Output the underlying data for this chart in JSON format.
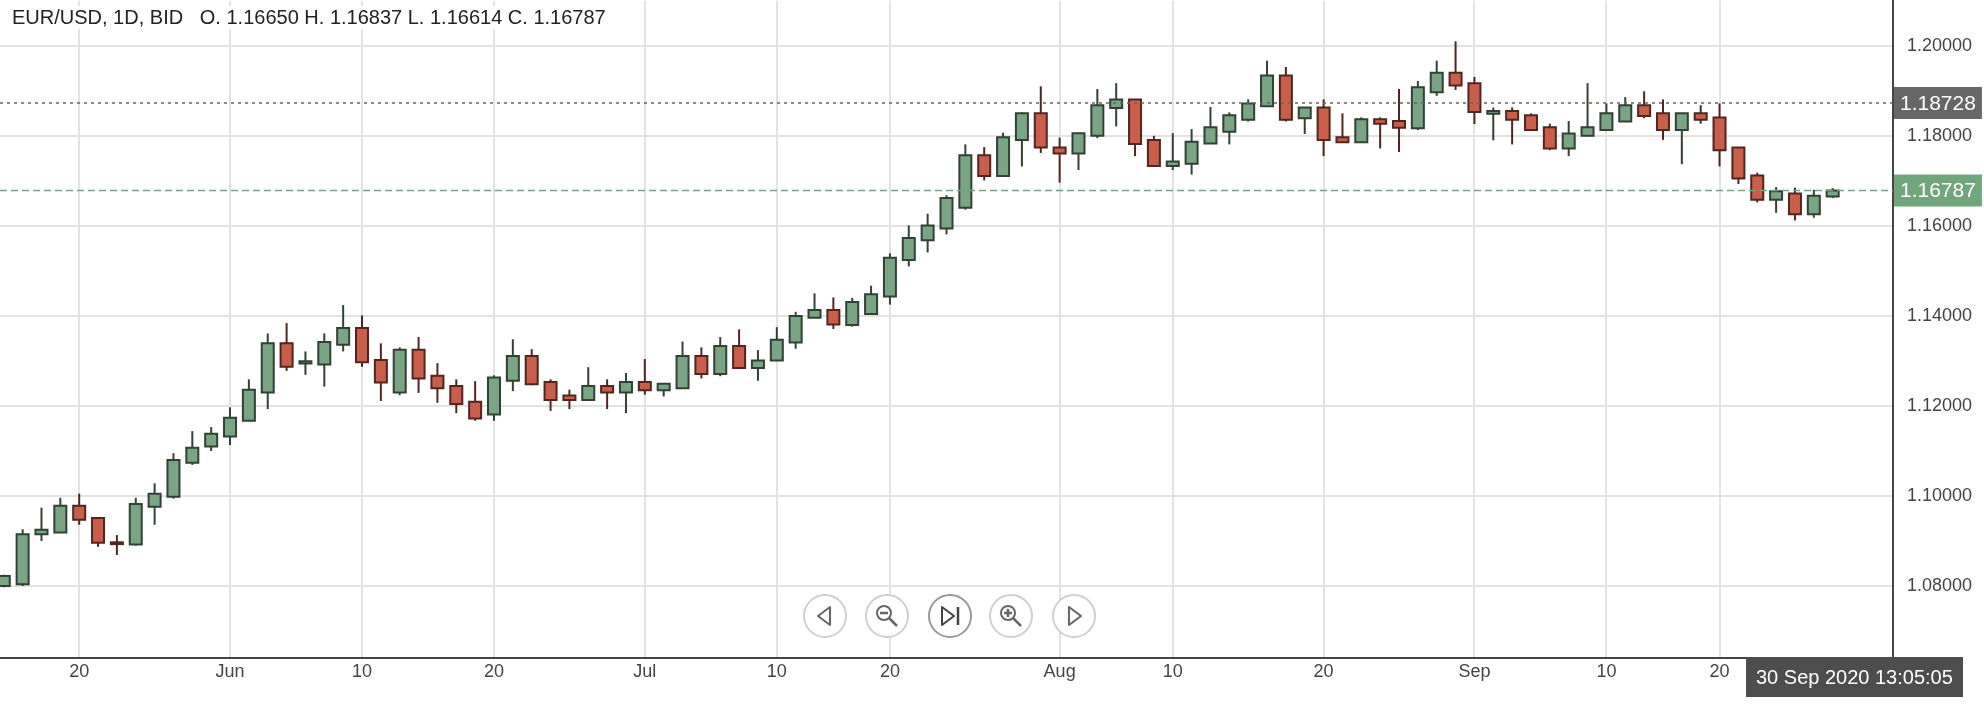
{
  "chart_data": {
    "type": "candlestick",
    "title": "EUR/USD, 1D, BID   O. 1.16650 H. 1.16837 L. 1.16614 C. 1.16787",
    "categories": [
      null,
      null,
      null,
      null,
      "20",
      null,
      null,
      null,
      null,
      null,
      null,
      null,
      "Jun",
      null,
      null,
      null,
      null,
      null,
      null,
      "10",
      null,
      null,
      null,
      null,
      null,
      null,
      "20",
      null,
      null,
      null,
      null,
      null,
      null,
      null,
      "Jul",
      null,
      null,
      null,
      null,
      null,
      null,
      "10",
      null,
      null,
      null,
      null,
      null,
      "20",
      null,
      null,
      null,
      null,
      null,
      null,
      null,
      null,
      "Aug",
      null,
      null,
      null,
      null,
      null,
      "10",
      null,
      null,
      null,
      null,
      null,
      null,
      null,
      "20",
      null,
      null,
      null,
      null,
      null,
      null,
      null,
      "Sep",
      null,
      null,
      null,
      null,
      null,
      null,
      "10",
      null,
      null,
      null,
      null,
      null,
      "20",
      null,
      null,
      null,
      null,
      null,
      null
    ],
    "ohlc": [
      [
        1.08,
        1.0825,
        1.0797,
        1.0822
      ],
      [
        1.0804,
        1.0926,
        1.08,
        1.0915
      ],
      [
        1.0915,
        1.0974,
        1.09,
        1.0925
      ],
      [
        1.0919,
        1.0996,
        1.0918,
        1.0978
      ],
      [
        1.0978,
        1.1005,
        1.0936,
        1.0947
      ],
      [
        1.0951,
        1.0953,
        1.0887,
        1.0896
      ],
      [
        1.0897,
        1.0913,
        1.0869,
        1.0893
      ],
      [
        1.0892,
        1.0996,
        1.089,
        1.0982
      ],
      [
        1.0976,
        1.1028,
        1.0936,
        1.1005
      ],
      [
        1.0998,
        1.1095,
        1.0994,
        1.108
      ],
      [
        1.1074,
        1.1144,
        1.1069,
        1.1107
      ],
      [
        1.111,
        1.1153,
        1.11,
        1.1138
      ],
      [
        1.1132,
        1.1197,
        1.1113,
        1.1174
      ],
      [
        1.1167,
        1.1259,
        1.1166,
        1.1236
      ],
      [
        1.123,
        1.1361,
        1.1193,
        1.1339
      ],
      [
        1.1339,
        1.1384,
        1.1278,
        1.1287
      ],
      [
        1.1294,
        1.1321,
        1.1269,
        1.1299
      ],
      [
        1.1292,
        1.1361,
        1.1243,
        1.1342
      ],
      [
        1.1336,
        1.1424,
        1.1321,
        1.1373
      ],
      [
        1.1373,
        1.1401,
        1.1287,
        1.1297
      ],
      [
        1.1302,
        1.1339,
        1.1211,
        1.1252
      ],
      [
        1.123,
        1.133,
        1.1224,
        1.1325
      ],
      [
        1.1325,
        1.1353,
        1.1229,
        1.1261
      ],
      [
        1.1267,
        1.1295,
        1.1207,
        1.1239
      ],
      [
        1.1244,
        1.1259,
        1.1184,
        1.1204
      ],
      [
        1.1209,
        1.1255,
        1.1167,
        1.1172
      ],
      [
        1.1181,
        1.1268,
        1.1167,
        1.1263
      ],
      [
        1.1256,
        1.1348,
        1.1233,
        1.1311
      ],
      [
        1.1311,
        1.1326,
        1.1246,
        1.1248
      ],
      [
        1.1253,
        1.1259,
        1.1189,
        1.1213
      ],
      [
        1.1223,
        1.1236,
        1.1193,
        1.1213
      ],
      [
        1.1213,
        1.1286,
        1.1212,
        1.1244
      ],
      [
        1.1244,
        1.1259,
        1.1193,
        1.123
      ],
      [
        1.123,
        1.1273,
        1.1184,
        1.1253
      ],
      [
        1.1253,
        1.1304,
        1.1225,
        1.1235
      ],
      [
        1.1235,
        1.125,
        1.1221,
        1.1249
      ],
      [
        1.1239,
        1.1343,
        1.1238,
        1.1311
      ],
      [
        1.1311,
        1.133,
        1.1261,
        1.1271
      ],
      [
        1.1271,
        1.1353,
        1.1266,
        1.1333
      ],
      [
        1.1333,
        1.137,
        1.1283,
        1.1284
      ],
      [
        1.1284,
        1.1324,
        1.1256,
        1.1301
      ],
      [
        1.1301,
        1.1375,
        1.13,
        1.1347
      ],
      [
        1.1341,
        1.1409,
        1.1327,
        1.14
      ],
      [
        1.1396,
        1.145,
        1.1395,
        1.1413
      ],
      [
        1.1413,
        1.1441,
        1.1371,
        1.1381
      ],
      [
        1.138,
        1.144,
        1.1376,
        1.1431
      ],
      [
        1.1404,
        1.1467,
        1.1403,
        1.1448
      ],
      [
        1.1443,
        1.1539,
        1.1425,
        1.1529
      ],
      [
        1.1524,
        1.1601,
        1.151,
        1.1573
      ],
      [
        1.1568,
        1.1627,
        1.1541,
        1.1601
      ],
      [
        1.1594,
        1.1668,
        1.1581,
        1.1662
      ],
      [
        1.164,
        1.1781,
        1.1636,
        1.1757
      ],
      [
        1.1757,
        1.1775,
        1.1701,
        1.1711
      ],
      [
        1.1711,
        1.1807,
        1.171,
        1.1797
      ],
      [
        1.1791,
        1.1852,
        1.1732,
        1.185
      ],
      [
        1.185,
        1.191,
        1.1762,
        1.1774
      ],
      [
        1.1774,
        1.1796,
        1.1696,
        1.1761
      ],
      [
        1.1761,
        1.1807,
        1.1724,
        1.1806
      ],
      [
        1.18,
        1.1904,
        1.1795,
        1.1868
      ],
      [
        1.1862,
        1.1917,
        1.1821,
        1.1881
      ],
      [
        1.1881,
        1.1882,
        1.1755,
        1.1782
      ],
      [
        1.1791,
        1.18,
        1.1732,
        1.1733
      ],
      [
        1.1733,
        1.1806,
        1.1724,
        1.1743
      ],
      [
        1.1738,
        1.1815,
        1.1714,
        1.1787
      ],
      [
        1.1783,
        1.1864,
        1.1782,
        1.1819
      ],
      [
        1.1809,
        1.1852,
        1.1781,
        1.1846
      ],
      [
        1.1836,
        1.1881,
        1.1832,
        1.1872
      ],
      [
        1.1866,
        1.1967,
        1.1865,
        1.1934
      ],
      [
        1.1934,
        1.1953,
        1.1832,
        1.1836
      ],
      [
        1.1839,
        1.1864,
        1.1804,
        1.1863
      ],
      [
        1.1863,
        1.1881,
        1.1755,
        1.1791
      ],
      [
        1.1797,
        1.185,
        1.1785,
        1.1786
      ],
      [
        1.1786,
        1.1841,
        1.1785,
        1.1837
      ],
      [
        1.1837,
        1.1841,
        1.1772,
        1.1827
      ],
      [
        1.1833,
        1.1904,
        1.1764,
        1.1818
      ],
      [
        1.1817,
        1.1922,
        1.1813,
        1.1908
      ],
      [
        1.1897,
        1.1967,
        1.1889,
        1.194
      ],
      [
        1.194,
        1.201,
        1.1902,
        1.1912
      ],
      [
        1.1917,
        1.1931,
        1.1826,
        1.1853
      ],
      [
        1.1849,
        1.1863,
        1.179,
        1.1855
      ],
      [
        1.1855,
        1.1863,
        1.1781,
        1.1836
      ],
      [
        1.1846,
        1.185,
        1.1812,
        1.1813
      ],
      [
        1.1819,
        1.1827,
        1.1768,
        1.1772
      ],
      [
        1.1772,
        1.1833,
        1.1755,
        1.1805
      ],
      [
        1.18,
        1.1917,
        1.1799,
        1.1819
      ],
      [
        1.1813,
        1.1872,
        1.1812,
        1.185
      ],
      [
        1.1832,
        1.1886,
        1.1831,
        1.1868
      ],
      [
        1.1868,
        1.1899,
        1.1839,
        1.1844
      ],
      [
        1.185,
        1.1881,
        1.1791,
        1.1813
      ],
      [
        1.1813,
        1.185,
        1.1737,
        1.185
      ],
      [
        1.185,
        1.1868,
        1.1827,
        1.1836
      ],
      [
        1.1841,
        1.1872,
        1.1732,
        1.1768
      ],
      [
        1.1774,
        1.1774,
        1.1693,
        1.1705
      ],
      [
        1.1712,
        1.1718,
        1.1652,
        1.1658
      ],
      [
        1.1658,
        1.1686,
        1.1629,
        1.1677
      ],
      [
        1.1672,
        1.1685,
        1.1612,
        1.1626
      ],
      [
        1.1626,
        1.168,
        1.1618,
        1.1667
      ],
      [
        1.1665,
        1.16837,
        1.16614,
        1.16787
      ]
    ],
    "colors": [
      "#7aa584",
      "#7aa584",
      "#7aa584",
      "#7aa584",
      "#c95f4b",
      "#c95f4b",
      "#c95f4b",
      "#7aa584",
      "#7aa584",
      "#7aa584",
      "#7aa584",
      "#7aa584",
      "#7aa584",
      "#7aa584",
      "#7aa584",
      "#c95f4b",
      "#7aa584",
      "#7aa584",
      "#7aa584",
      "#c95f4b",
      "#c95f4b",
      "#7aa584",
      "#c95f4b",
      "#c95f4b",
      "#c95f4b",
      "#c95f4b",
      "#7aa584",
      "#7aa584",
      "#c95f4b",
      "#c95f4b",
      "#c95f4b",
      "#7aa584",
      "#c95f4b",
      "#7aa584",
      "#c95f4b",
      "#7aa584",
      "#7aa584",
      "#c95f4b",
      "#7aa584",
      "#c95f4b",
      "#7aa584",
      "#7aa584",
      "#7aa584",
      "#7aa584",
      "#c95f4b",
      "#7aa584",
      "#7aa584",
      "#7aa584",
      "#7aa584",
      "#7aa584",
      "#7aa584",
      "#7aa584",
      "#c95f4b",
      "#7aa584",
      "#7aa584",
      "#c95f4b",
      "#c95f4b",
      "#7aa584",
      "#7aa584",
      "#7aa584",
      "#c95f4b",
      "#c95f4b",
      "#7aa584",
      "#7aa584",
      "#7aa584",
      "#7aa584",
      "#7aa584",
      "#7aa584",
      "#c95f4b",
      "#7aa584",
      "#c95f4b",
      "#c95f4b",
      "#7aa584",
      "#c95f4b",
      "#c95f4b",
      "#7aa584",
      "#7aa584",
      "#c95f4b",
      "#c95f4b",
      "#7aa584",
      "#c95f4b",
      "#c95f4b",
      "#c95f4b",
      "#7aa584",
      "#7aa584",
      "#7aa584",
      "#7aa584",
      "#c95f4b",
      "#c95f4b",
      "#7aa584",
      "#c95f4b",
      "#c95f4b",
      "#c95f4b",
      "#c95f4b",
      "#7aa584",
      "#c95f4b",
      "#7aa584",
      "#7aa584"
    ],
    "ylim": [
      1.064,
      1.21
    ],
    "yticks": [
      {
        "value": 1.08,
        "label": "1.08000"
      },
      {
        "value": 1.1,
        "label": "1.10000"
      },
      {
        "value": 1.12,
        "label": "1.12000"
      },
      {
        "value": 1.14,
        "label": "1.14000"
      },
      {
        "value": 1.16,
        "label": "1.16000"
      },
      {
        "value": 1.18,
        "label": "1.18000"
      },
      {
        "value": 1.2,
        "label": "1.20000"
      }
    ],
    "grid": true,
    "ref_lines": [
      {
        "axis": "y",
        "value": 1.18728,
        "label": "1.18728",
        "color": "#666666",
        "line_style": "dotted"
      },
      {
        "axis": "y",
        "value": 1.16787,
        "label": "1.16787",
        "color": "#6fa67c",
        "line_style": "dashed"
      }
    ],
    "annotations": [
      "30 Sep 2020 13:05:05"
    ]
  }
}
